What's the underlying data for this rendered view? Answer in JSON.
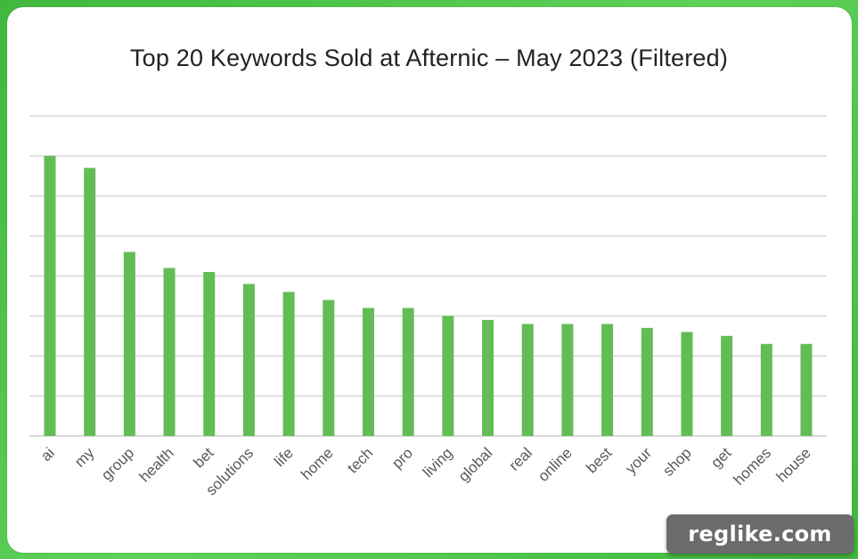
{
  "chart_data": {
    "type": "bar",
    "title": "Top 20 Keywords Sold at Afternic – May 2023 (Filtered)",
    "xlabel": "",
    "ylabel": "",
    "categories": [
      "ai",
      "my",
      "group",
      "health",
      "bet",
      "solutions",
      "life",
      "home",
      "tech",
      "pro",
      "living",
      "global",
      "real",
      "online",
      "best",
      "your",
      "shop",
      "get",
      "homes",
      "house"
    ],
    "values": [
      70,
      67,
      46,
      42,
      41,
      38,
      36,
      34,
      32,
      32,
      30,
      29,
      28,
      28,
      28,
      27,
      26,
      25,
      23,
      23
    ],
    "ylim": [
      0,
      80
    ],
    "y_gridlines": [
      10,
      20,
      30,
      40,
      50,
      60,
      70,
      80
    ],
    "y_tick_labels_visible": false,
    "grid": true,
    "legend": "none",
    "bar_color": "#62bd55",
    "grid_color": "#d9d9d9"
  },
  "watermark": {
    "text": "reglike.com"
  },
  "colors": {
    "background": "#4cc04a",
    "card": "#ffffff",
    "title": "#222222",
    "tick_label": "#595959"
  }
}
